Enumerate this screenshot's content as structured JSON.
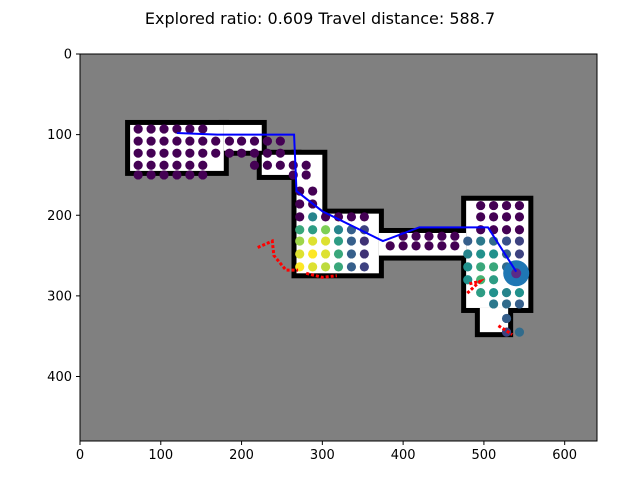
{
  "figure": {
    "title": "Explored ratio: 0.609  Travel distance: 588.7"
  },
  "chart_data": {
    "type": "scatter",
    "title": "Explored ratio: 0.609  Travel distance: 588.7",
    "xlim": [
      0,
      640
    ],
    "ylim": [
      480,
      0
    ],
    "y_inverted": true,
    "x_ticks": [
      0,
      100,
      200,
      300,
      400,
      500,
      600
    ],
    "y_ticks": [
      0,
      100,
      200,
      300,
      400
    ],
    "grid": false,
    "colors": {
      "unknown": "#808080",
      "free": "#ffffff",
      "wall": "#000000",
      "path": "#0000ff",
      "frontier": "#ff0000",
      "low_utility": "#440154",
      "high_utility": "#fde725",
      "robot": "#1f77b4"
    },
    "free_regions": [
      {
        "x": [
          62,
          178
        ],
        "y": [
          88,
          145
        ]
      },
      {
        "x": [
          178,
          225
        ],
        "y": [
          88,
          120
        ]
      },
      {
        "x": [
          225,
          268
        ],
        "y": [
          125,
          150
        ]
      },
      {
        "x": [
          268,
          300
        ],
        "y": [
          125,
          200
        ]
      },
      {
        "x": [
          268,
          370
        ],
        "y": [
          198,
          272
        ]
      },
      {
        "x": [
          370,
          478
        ],
        "y": [
          222,
          250
        ]
      },
      {
        "x": [
          478,
          555
        ],
        "y": [
          182,
          315
        ]
      },
      {
        "x": [
          495,
          530
        ],
        "y": [
          315,
          345
        ]
      }
    ],
    "path": {
      "x": [
        120,
        170,
        265,
        268,
        300,
        375,
        420,
        505,
        540
      ],
      "y": [
        98,
        100,
        100,
        170,
        195,
        232,
        215,
        215,
        270
      ]
    },
    "frontiers": [
      {
        "x": [
          220,
          238,
          240,
          255,
          270
        ],
        "y": [
          240,
          232,
          250,
          268,
          268
        ]
      },
      {
        "x": [
          280,
          300,
          318
        ],
        "y": [
          272,
          277,
          275
        ]
      },
      {
        "x": [
          482,
          495,
          478
        ],
        "y": [
          285,
          282,
          298
        ]
      },
      {
        "x": [
          518,
          535
        ],
        "y": [
          337,
          348
        ]
      }
    ],
    "robot": {
      "x": 540,
      "y": 272
    },
    "series": [
      {
        "points": [
          [
            72,
            93,
            0
          ],
          [
            88,
            93,
            0
          ],
          [
            104,
            93,
            0
          ],
          [
            120,
            93,
            0
          ],
          [
            136,
            93,
            0
          ],
          [
            152,
            93,
            0
          ],
          [
            72,
            108,
            0
          ],
          [
            88,
            108,
            0
          ],
          [
            104,
            108,
            0
          ],
          [
            120,
            108,
            0
          ],
          [
            136,
            108,
            0
          ],
          [
            152,
            108,
            0
          ],
          [
            72,
            123,
            0
          ],
          [
            88,
            123,
            0
          ],
          [
            104,
            123,
            0
          ],
          [
            120,
            123,
            0
          ],
          [
            136,
            123,
            0
          ],
          [
            152,
            123,
            0
          ],
          [
            72,
            138,
            0
          ],
          [
            88,
            138,
            0
          ],
          [
            104,
            138,
            0
          ],
          [
            120,
            138,
            0
          ],
          [
            136,
            138,
            0
          ],
          [
            152,
            138,
            0
          ],
          [
            72,
            150,
            0
          ],
          [
            88,
            150,
            0
          ],
          [
            104,
            150,
            0
          ],
          [
            120,
            150,
            0
          ],
          [
            136,
            150,
            0
          ],
          [
            152,
            150,
            0
          ],
          [
            168,
            108,
            0
          ],
          [
            185,
            108,
            0
          ],
          [
            200,
            108,
            0
          ],
          [
            216,
            108,
            0
          ],
          [
            232,
            108,
            0
          ],
          [
            248,
            108,
            0
          ],
          [
            168,
            123,
            0
          ],
          [
            185,
            123,
            0
          ],
          [
            200,
            123,
            0
          ],
          [
            216,
            123,
            0
          ],
          [
            232,
            123,
            0
          ],
          [
            248,
            123,
            0
          ],
          [
            216,
            138,
            0
          ],
          [
            232,
            138,
            0
          ],
          [
            248,
            138,
            0
          ],
          [
            264,
            138,
            0
          ],
          [
            280,
            138,
            0
          ],
          [
            264,
            150,
            0
          ],
          [
            280,
            150,
            0
          ],
          [
            272,
            170,
            0
          ],
          [
            288,
            170,
            0
          ],
          [
            272,
            186,
            0
          ],
          [
            288,
            186,
            0
          ],
          [
            272,
            202,
            0
          ],
          [
            288,
            202,
            0.45
          ],
          [
            304,
            202,
            0
          ],
          [
            320,
            202,
            0
          ],
          [
            336,
            202,
            0
          ],
          [
            352,
            202,
            0
          ],
          [
            272,
            218,
            0.6
          ],
          [
            288,
            218,
            0.55
          ],
          [
            304,
            218,
            0.8
          ],
          [
            320,
            218,
            0.45
          ],
          [
            336,
            218,
            0.3
          ],
          [
            352,
            218,
            0.2
          ],
          [
            272,
            232,
            0.85
          ],
          [
            288,
            232,
            0.95
          ],
          [
            304,
            232,
            0.95
          ],
          [
            320,
            232,
            0.55
          ],
          [
            336,
            232,
            0.3
          ],
          [
            352,
            232,
            0.15
          ],
          [
            272,
            248,
            0.95
          ],
          [
            288,
            248,
            1.0
          ],
          [
            304,
            248,
            0.95
          ],
          [
            320,
            248,
            0.6
          ],
          [
            336,
            248,
            0.3
          ],
          [
            352,
            248,
            0.15
          ],
          [
            272,
            264,
            1.0
          ],
          [
            288,
            264,
            0.95
          ],
          [
            304,
            264,
            0.9
          ],
          [
            320,
            264,
            0.6
          ],
          [
            336,
            264,
            0.3
          ],
          [
            352,
            264,
            0.2
          ],
          [
            384,
            238,
            0
          ],
          [
            400,
            238,
            0
          ],
          [
            416,
            238,
            0
          ],
          [
            432,
            238,
            0
          ],
          [
            448,
            238,
            0
          ],
          [
            464,
            238,
            0
          ],
          [
            400,
            226,
            0
          ],
          [
            416,
            226,
            0
          ],
          [
            432,
            226,
            0
          ],
          [
            448,
            226,
            0
          ],
          [
            464,
            226,
            0
          ],
          [
            496,
            188,
            0
          ],
          [
            512,
            188,
            0
          ],
          [
            528,
            188,
            0
          ],
          [
            544,
            188,
            0
          ],
          [
            496,
            202,
            0
          ],
          [
            512,
            202,
            0
          ],
          [
            528,
            202,
            0
          ],
          [
            544,
            202,
            0
          ],
          [
            496,
            218,
            0
          ],
          [
            512,
            218,
            0
          ],
          [
            528,
            218,
            0
          ],
          [
            544,
            218,
            0
          ],
          [
            480,
            232,
            0.3
          ],
          [
            496,
            232,
            0.4
          ],
          [
            512,
            232,
            0.35
          ],
          [
            528,
            232,
            0.25
          ],
          [
            544,
            232,
            0.2
          ],
          [
            480,
            248,
            0.45
          ],
          [
            496,
            248,
            0.5
          ],
          [
            512,
            248,
            0.5
          ],
          [
            528,
            248,
            0.3
          ],
          [
            544,
            248,
            0.2
          ],
          [
            480,
            264,
            0.5
          ],
          [
            496,
            264,
            0.6
          ],
          [
            512,
            264,
            0.6
          ],
          [
            528,
            264,
            0.35
          ],
          [
            544,
            264,
            0.25
          ],
          [
            480,
            280,
            0.5
          ],
          [
            496,
            280,
            0.65
          ],
          [
            512,
            280,
            0.55
          ],
          [
            544,
            280,
            0.4
          ],
          [
            496,
            296,
            0.55
          ],
          [
            512,
            296,
            0.5
          ],
          [
            528,
            296,
            0.45
          ],
          [
            544,
            296,
            0.5
          ],
          [
            512,
            310,
            0.4
          ],
          [
            528,
            310,
            0.35
          ],
          [
            544,
            310,
            0.3
          ],
          [
            528,
            328,
            0.3
          ],
          [
            528,
            345,
            0.2
          ],
          [
            544,
            345,
            0.35
          ]
        ]
      }
    ]
  }
}
